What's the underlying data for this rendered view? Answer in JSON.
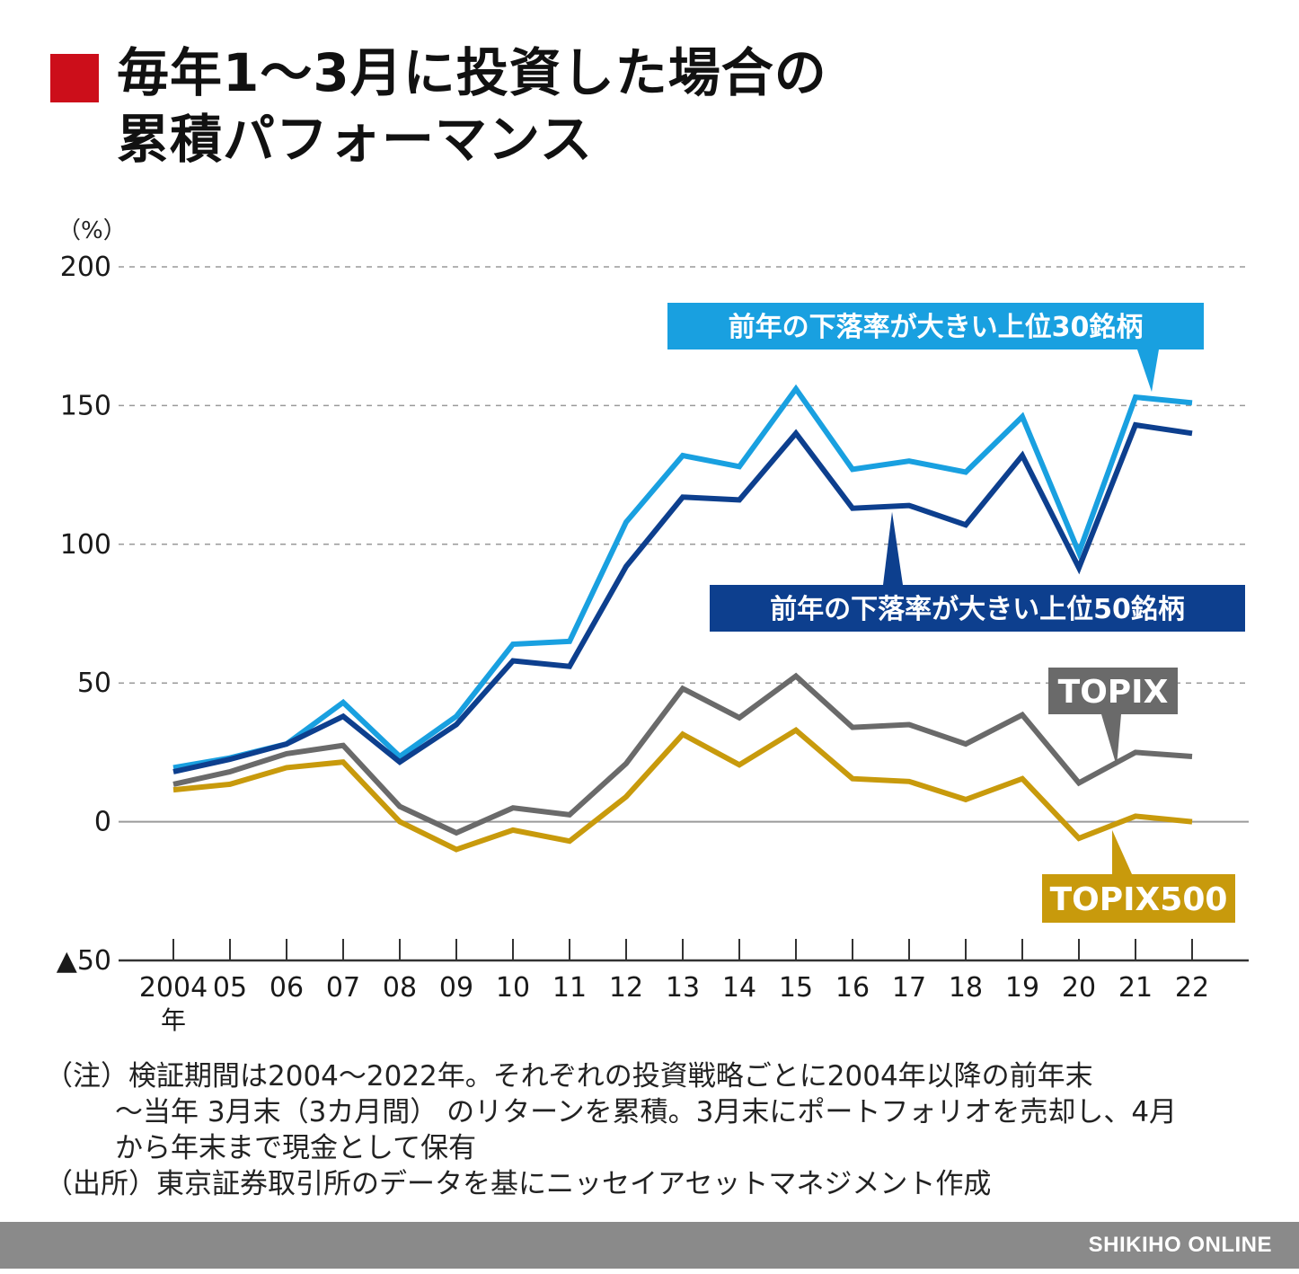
{
  "title": {
    "line1": "毎年1〜3月に投資した場合の",
    "line2": "累積パフォーマンス",
    "marker_color": "#cc0e1a"
  },
  "chart_data": {
    "type": "line",
    "unit_label": "（%）",
    "ylim": [
      -50,
      200
    ],
    "y_ticks": [
      200,
      150,
      100,
      50,
      0,
      -50
    ],
    "y_tick_labels": [
      "200",
      "150",
      "100",
      "50",
      "0",
      "▲50"
    ],
    "categories": [
      "2004",
      "05",
      "06",
      "07",
      "08",
      "09",
      "10",
      "11",
      "12",
      "13",
      "14",
      "15",
      "16",
      "17",
      "18",
      "19",
      "20",
      "21",
      "22"
    ],
    "x_unit": "年",
    "grid": "dashed-horizontal",
    "series": [
      {
        "name": "前年の下落率が大きい上位30銘柄",
        "color": "#19a0e0",
        "values": [
          19.5,
          23,
          28,
          43,
          23.5,
          38,
          64,
          65,
          108,
          132,
          128,
          156,
          127,
          130,
          126,
          146,
          97,
          153,
          151
        ]
      },
      {
        "name": "前年の下落率が大きい上位50銘柄",
        "color": "#0d3f8e",
        "values": [
          18,
          22.5,
          28,
          38,
          21.5,
          35,
          58,
          56,
          92,
          117,
          116,
          140,
          113,
          114,
          107,
          132,
          91.5,
          143,
          140
        ]
      },
      {
        "name": "TOPIX",
        "color": "#6a6a6a",
        "values": [
          13.5,
          18,
          24.5,
          27.5,
          5.5,
          -4,
          5,
          2.5,
          21,
          48,
          37.5,
          52.5,
          34,
          35,
          28,
          38.5,
          14,
          25,
          23.5
        ]
      },
      {
        "name": "TOPIX500",
        "color": "#c89a0c",
        "values": [
          11.5,
          13.5,
          19.5,
          21.5,
          0,
          -10,
          -3,
          -7,
          9,
          31.5,
          20.5,
          33,
          15.5,
          14.5,
          8,
          15.5,
          -6,
          2,
          0
        ]
      }
    ]
  },
  "notes": {
    "note_head": "（注）",
    "note_line1": "検証期間は2004〜2022年。それぞれの投資戦略ごとに2004年以降の前年末",
    "note_line2": "〜当年 3月末（3カ月間） のリターンを累積。3月末にポートフォリオを売却し、4月",
    "note_line3": "から年末まで現金として保有",
    "source": "（出所）東京証券取引所のデータを基にニッセイアセットマネジメント作成"
  },
  "footer": {
    "brand": "SHIKIHO ONLINE",
    "bar_color": "#8a8a8a"
  }
}
